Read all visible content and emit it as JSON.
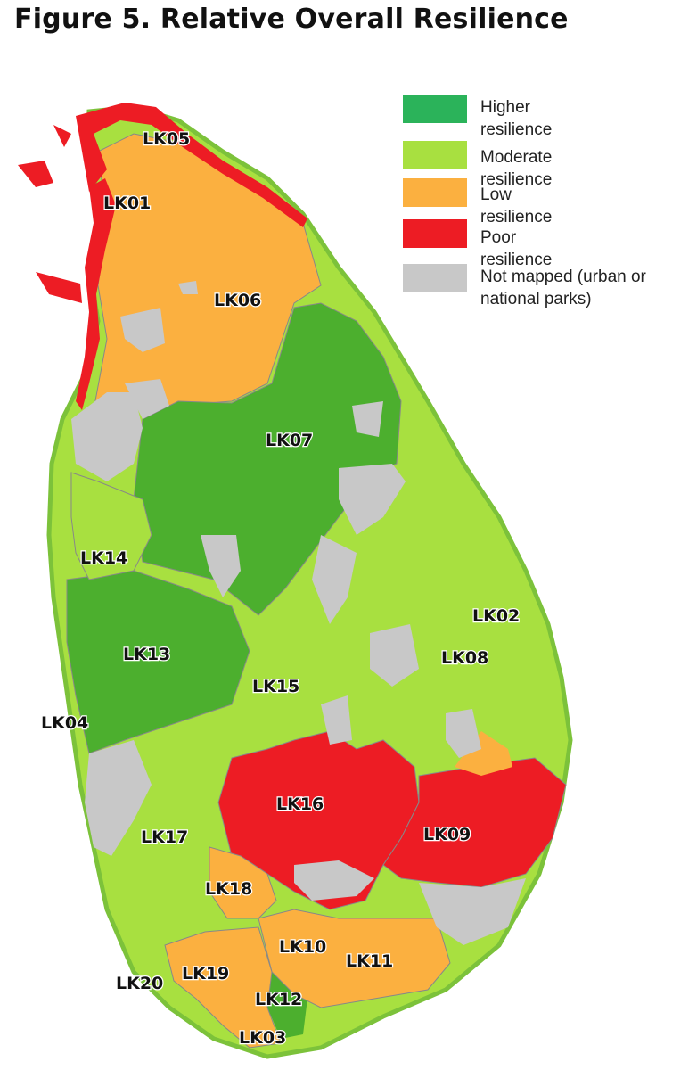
{
  "title": "Figure 5. Relative Overall Resilience",
  "legend": [
    {
      "label": "Higher resilience",
      "color": "#2bb35a"
    },
    {
      "label": "Moderate resilience",
      "color": "#a8e040"
    },
    {
      "label": "Low resilience",
      "color": "#fbb040"
    },
    {
      "label": "Poor resilience",
      "color": "#ed1c24"
    },
    {
      "label": "Not mapped (urban or national parks)",
      "color": "#c8c8c8"
    }
  ],
  "regions": [
    {
      "code": "LK05",
      "class": "Poor resilience"
    },
    {
      "code": "LK01",
      "class": "Low resilience"
    },
    {
      "code": "LK06",
      "class": "Low resilience"
    },
    {
      "code": "LK07",
      "class": "Higher resilience"
    },
    {
      "code": "LK14",
      "class": "Moderate resilience"
    },
    {
      "code": "LK02",
      "class": "Moderate resilience"
    },
    {
      "code": "LK08",
      "class": "Moderate resilience"
    },
    {
      "code": "LK13",
      "class": "Higher resilience"
    },
    {
      "code": "LK15",
      "class": "Moderate resilience"
    },
    {
      "code": "LK04",
      "class": "Moderate resilience"
    },
    {
      "code": "LK16",
      "class": "Poor resilience"
    },
    {
      "code": "LK09",
      "class": "Poor resilience"
    },
    {
      "code": "LK17",
      "class": "Moderate resilience"
    },
    {
      "code": "LK18",
      "class": "Low resilience"
    },
    {
      "code": "LK10",
      "class": "Low resilience"
    },
    {
      "code": "LK11",
      "class": "Low resilience"
    },
    {
      "code": "LK19",
      "class": "Low resilience"
    },
    {
      "code": "LK20",
      "class": "Moderate resilience"
    },
    {
      "code": "LK12",
      "class": "Higher resilience"
    },
    {
      "code": "LK03",
      "class": "Low resilience"
    }
  ]
}
